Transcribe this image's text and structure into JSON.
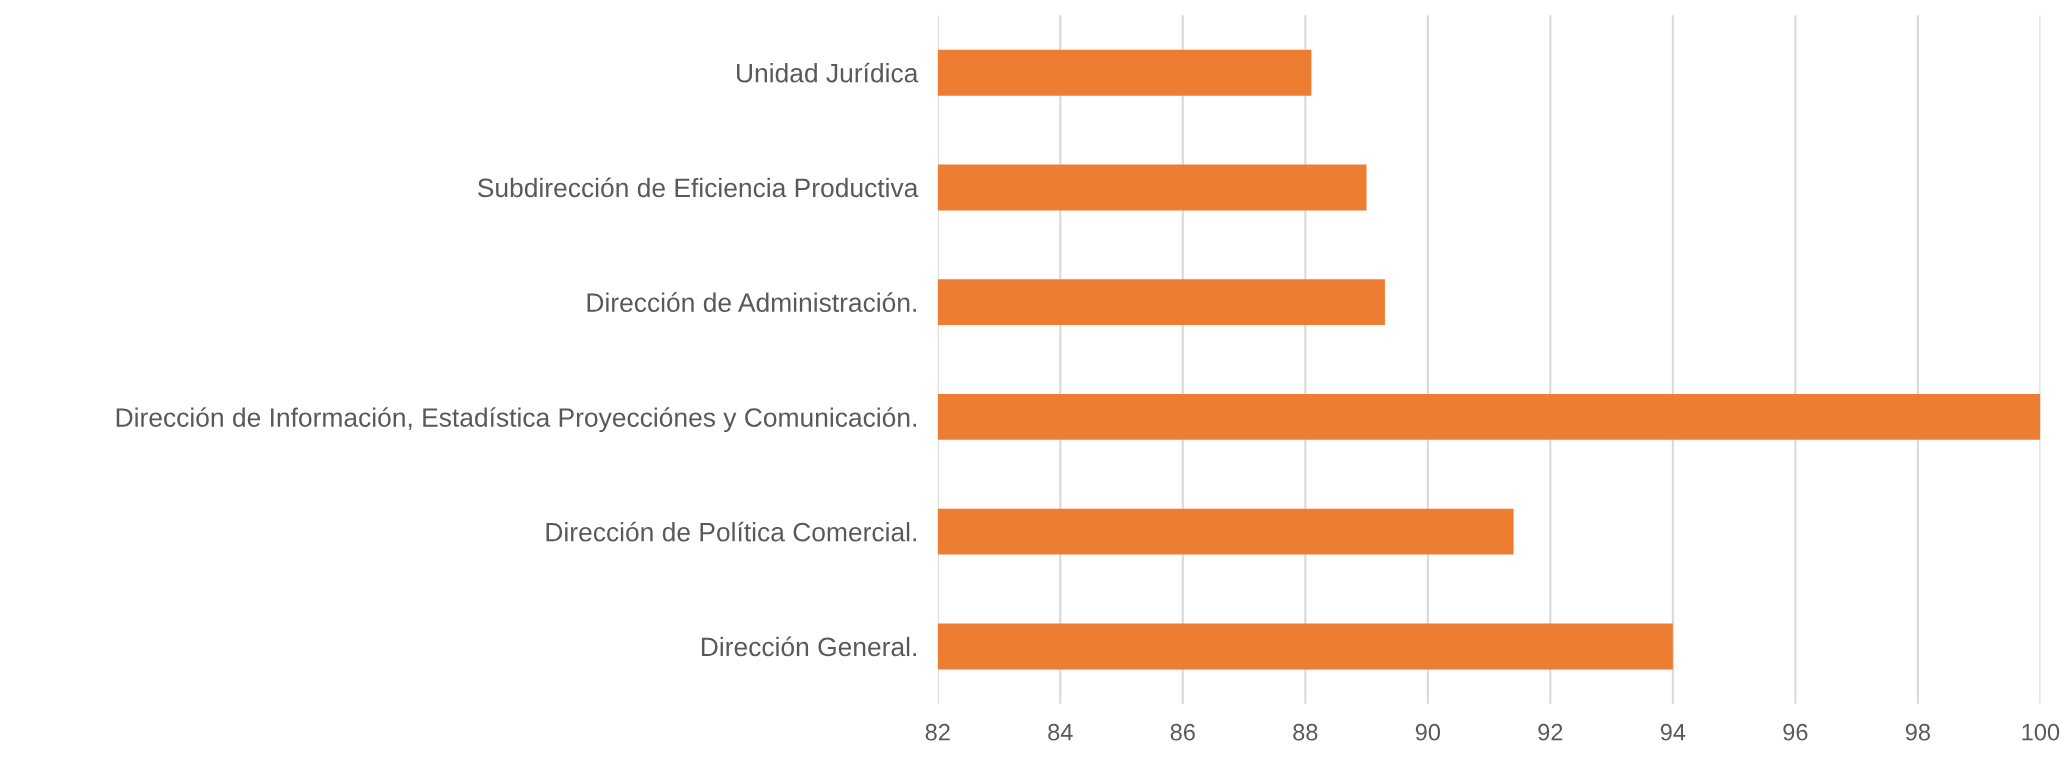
{
  "chart_data": {
    "type": "bar",
    "orientation": "horizontal",
    "categories": [
      "Unidad Jurídica",
      "Subdirección de Eficiencia Productiva",
      "Dirección de Administración.",
      "Dirección de Información, Estadística Proyecciónes y Comunicación.",
      "Dirección de Política Comercial.",
      "Dirección General."
    ],
    "values": [
      88.1,
      89.0,
      89.3,
      100,
      91.4,
      94.0
    ],
    "color": "#ed7d31",
    "xlim": [
      82,
      100
    ],
    "xticks": [
      82,
      84,
      86,
      88,
      90,
      92,
      94,
      96,
      98,
      100
    ],
    "grid": "x"
  }
}
